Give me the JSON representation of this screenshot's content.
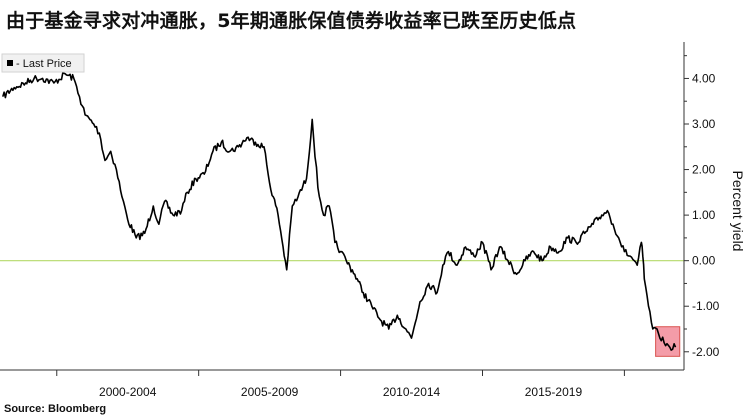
{
  "title": "由于基金寻求对冲通胀，5年期通胀保值债券收益率已跌至历史低点",
  "source": "Source: Bloomberg",
  "colors": {
    "line": "#000000",
    "zero_line": "#b5d96a",
    "highlight_fill": "#f28b99",
    "highlight_stroke": "#d9534f",
    "axis": "#333333"
  },
  "chart_data": {
    "type": "line",
    "ylabel": "Percent yield",
    "ylim": [
      -2.4,
      4.8
    ],
    "xlim": [
      1997.5,
      2021.6
    ],
    "yticks": [
      {
        "value": 4,
        "label": "4.00"
      },
      {
        "value": 3,
        "label": "3.00"
      },
      {
        "value": 2,
        "label": "2.00"
      },
      {
        "value": 1,
        "label": "1.00"
      },
      {
        "value": 0,
        "label": "0.00"
      },
      {
        "value": -1,
        "label": "-1.00"
      },
      {
        "value": -2,
        "label": "-2.00"
      }
    ],
    "xticks": [
      {
        "value": 2002,
        "label": "2000-2004"
      },
      {
        "value": 2007,
        "label": "2005-2009"
      },
      {
        "value": 2012,
        "label": "2010-2014"
      },
      {
        "value": 2017,
        "label": "2015-2019"
      }
    ],
    "xtick_marks": [
      1999.5,
      2004.5,
      2009.5,
      2014.5,
      2019.5
    ],
    "legend": {
      "position": "top-left",
      "entries": [
        "- Last Price"
      ]
    },
    "reference_line": {
      "y": 0
    },
    "highlight": {
      "x": [
        2020.6,
        2021.45
      ],
      "y": [
        -2.1,
        -1.45
      ]
    },
    "series": [
      {
        "name": "- Last Price",
        "x": [
          1997.6,
          1998.0,
          1998.4,
          1998.7,
          1999.0,
          1999.4,
          1999.8,
          2000.1,
          2000.3,
          2000.5,
          2000.8,
          2001.0,
          2001.2,
          2001.4,
          2001.6,
          2001.8,
          2002.0,
          2002.3,
          2002.6,
          2002.9,
          2003.1,
          2003.3,
          2003.6,
          2003.9,
          2004.1,
          2004.4,
          2004.7,
          2005.0,
          2005.3,
          2005.6,
          2005.9,
          2006.2,
          2006.5,
          2006.8,
          2007.0,
          2007.3,
          2007.6,
          2007.8,
          2008.0,
          2008.3,
          2008.5,
          2008.7,
          2008.9,
          2009.1,
          2009.3,
          2009.5,
          2009.7,
          2010.0,
          2010.3,
          2010.6,
          2010.9,
          2011.2,
          2011.5,
          2011.8,
          2012.0,
          2012.3,
          2012.6,
          2012.9,
          2013.1,
          2013.3,
          2013.6,
          2013.9,
          2014.2,
          2014.5,
          2014.8,
          2015.1,
          2015.4,
          2015.7,
          2016.0,
          2016.3,
          2016.6,
          2016.9,
          2017.2,
          2017.5,
          2017.8,
          2018.1,
          2018.4,
          2018.7,
          2018.9,
          2019.1,
          2019.3,
          2019.5,
          2019.7,
          2019.85,
          2019.95,
          2020.1,
          2020.15,
          2020.2,
          2020.35,
          2020.5,
          2020.7,
          2020.9,
          2021.1,
          2021.3
        ],
        "y": [
          3.6,
          3.8,
          3.9,
          4.0,
          4.0,
          3.9,
          4.1,
          4.0,
          3.6,
          3.2,
          3.0,
          2.8,
          2.2,
          2.4,
          2.0,
          1.4,
          0.9,
          0.5,
          0.6,
          1.2,
          0.8,
          1.3,
          1.0,
          1.1,
          1.5,
          1.8,
          1.9,
          2.4,
          2.6,
          2.4,
          2.5,
          2.7,
          2.6,
          2.5,
          1.7,
          1.0,
          -0.2,
          1.2,
          1.4,
          1.8,
          3.1,
          1.6,
          1.0,
          1.2,
          0.4,
          0.2,
          0.0,
          -0.3,
          -0.7,
          -1.0,
          -1.3,
          -1.5,
          -1.2,
          -1.5,
          -1.7,
          -0.9,
          -0.5,
          -0.7,
          -0.1,
          0.2,
          -0.1,
          0.3,
          0.1,
          0.4,
          -0.2,
          0.3,
          0.0,
          -0.3,
          0.0,
          0.2,
          0.0,
          0.3,
          0.2,
          0.5,
          0.4,
          0.6,
          0.8,
          1.0,
          1.1,
          0.8,
          0.5,
          0.2,
          0.1,
          0.0,
          -0.1,
          0.4,
          0.1,
          -0.4,
          -1.0,
          -1.5,
          -1.6,
          -1.8,
          -1.9,
          -1.9
        ]
      }
    ]
  }
}
